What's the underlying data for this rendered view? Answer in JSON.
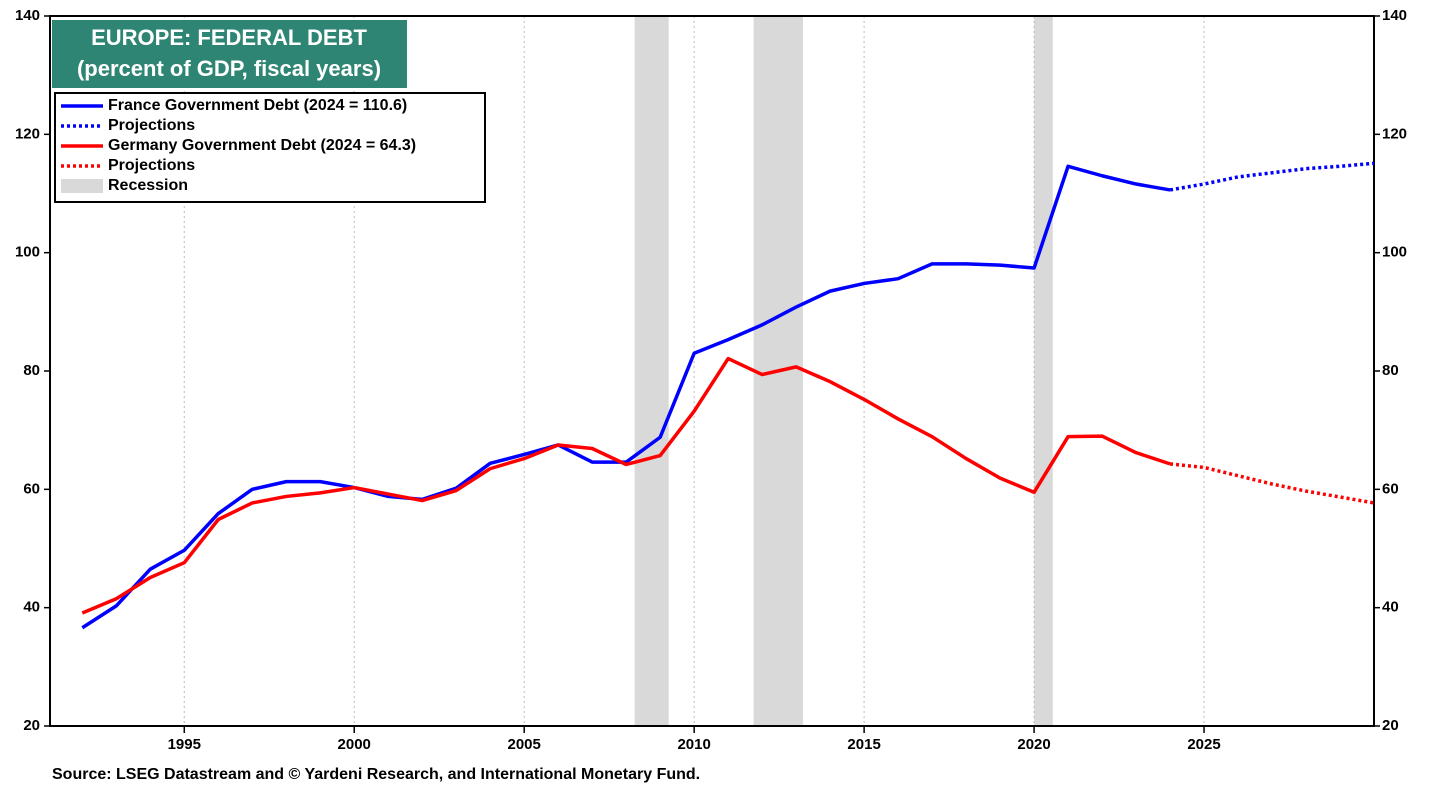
{
  "chart_data": {
    "type": "line",
    "title": "EUROPE: FEDERAL DEBT",
    "subtitle": "(percent of GDP, fiscal years)",
    "source": "Source: LSEG Datastream and © Yardeni Research, and International Monetary Fund.",
    "x": [
      1992,
      1993,
      1994,
      1995,
      1996,
      1997,
      1998,
      1999,
      2000,
      2001,
      2002,
      2003,
      2004,
      2005,
      2006,
      2007,
      2008,
      2009,
      2010,
      2011,
      2012,
      2013,
      2014,
      2015,
      2016,
      2017,
      2018,
      2019,
      2020,
      2021,
      2022,
      2023,
      2024,
      2025,
      2026,
      2027,
      2028,
      2029,
      2030
    ],
    "series": [
      {
        "name": "France Government Debt (2024 = 110.6)",
        "color": "#0000ff",
        "dashed": false,
        "values": [
          36.6,
          40.3,
          46.5,
          49.7,
          55.9,
          60.0,
          61.3,
          61.3,
          60.3,
          58.8,
          58.3,
          60.2,
          64.4,
          65.9,
          67.5,
          64.6,
          64.6,
          68.8,
          83.0,
          85.3,
          87.8,
          90.8,
          93.5,
          94.8,
          95.6,
          98.1,
          98.1,
          97.9,
          97.4,
          114.6,
          113.0,
          111.6,
          110.6,
          null,
          null,
          null,
          null,
          null,
          null
        ]
      },
      {
        "name": "Projections",
        "color": "#0000ff",
        "dashed": true,
        "values": [
          null,
          null,
          null,
          null,
          null,
          null,
          null,
          null,
          null,
          null,
          null,
          null,
          null,
          null,
          null,
          null,
          null,
          null,
          null,
          null,
          null,
          null,
          null,
          null,
          null,
          null,
          null,
          null,
          null,
          null,
          null,
          null,
          110.6,
          111.6,
          112.8,
          113.5,
          114.2,
          114.6,
          115.1
        ]
      },
      {
        "name": "Germany Government Debt (2024 = 64.3)",
        "color": "#ff0000",
        "dashed": false,
        "values": [
          39.1,
          41.5,
          45.1,
          47.6,
          54.9,
          57.7,
          58.8,
          59.4,
          60.3,
          59.2,
          58.1,
          59.8,
          63.5,
          65.2,
          67.5,
          66.9,
          64.2,
          65.7,
          73.2,
          82.1,
          79.4,
          80.7,
          78.2,
          75.2,
          71.9,
          68.9,
          65.2,
          61.9,
          59.5,
          68.9,
          69.0,
          66.2,
          64.3,
          null,
          null,
          null,
          null,
          null,
          null
        ]
      },
      {
        "name": "Projections",
        "color": "#ff0000",
        "dashed": true,
        "values": [
          null,
          null,
          null,
          null,
          null,
          null,
          null,
          null,
          null,
          null,
          null,
          null,
          null,
          null,
          null,
          null,
          null,
          null,
          null,
          null,
          null,
          null,
          null,
          null,
          null,
          null,
          null,
          null,
          null,
          null,
          null,
          null,
          64.3,
          63.7,
          62.3,
          60.9,
          59.7,
          58.7,
          57.7
        ]
      }
    ],
    "recessions": {
      "name": "Recession",
      "color": "#d9d9d9",
      "ranges": [
        [
          2008.25,
          2009.25
        ],
        [
          2011.75,
          2013.2
        ],
        [
          2020.0,
          2020.55
        ]
      ]
    },
    "xlim": [
      1991.05,
      2030
    ],
    "xticks": [
      1995,
      2000,
      2005,
      2010,
      2015,
      2020,
      2025
    ],
    "ylim": [
      20,
      140
    ],
    "yticks": [
      20,
      40,
      60,
      80,
      100,
      120,
      140
    ],
    "y2lim": [
      20,
      140
    ],
    "y2ticks": [
      20,
      40,
      60,
      80,
      100,
      120,
      140
    ],
    "legend": "top-left"
  }
}
